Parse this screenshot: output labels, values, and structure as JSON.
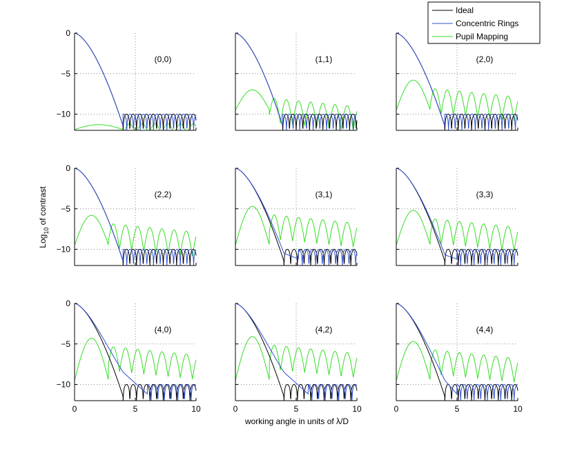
{
  "chart_data": {
    "type": "line",
    "title": "",
    "xlabel": "working angle in units of λ/D",
    "ylabel_main": "Log",
    "ylabel_sub": "10",
    "ylabel_rest": " of contrast",
    "xlim": [
      0,
      10
    ],
    "ylim": [
      -12,
      0
    ],
    "x_ticks": [
      0,
      5,
      10
    ],
    "y_ticks": [
      0,
      -5,
      -10
    ],
    "x_tick_labels": [
      "0",
      "5",
      "10"
    ],
    "y_tick_labels": [
      "0",
      "−5",
      "−10"
    ],
    "grid": "dotted",
    "legend": {
      "position": "top-right",
      "entries": [
        {
          "name": "Ideal",
          "color": "#000000"
        },
        {
          "name": "Concentric Rings",
          "color": "#2f4fd0"
        },
        {
          "name": "Pupil Mapping",
          "color": "#33dd22"
        }
      ]
    },
    "panels": [
      {
        "label": "(0,0)",
        "ideal_zero": 4.0,
        "ring_dev": 0.0,
        "ring_zero": 4.0,
        "pm_type": "low",
        "pm_peak": -11.2
      },
      {
        "label": "(1,1)",
        "ideal_zero": 3.9,
        "ring_dev": 0.0,
        "ring_zero": 3.9,
        "pm_type": "mid",
        "pm_peak": -7.0
      },
      {
        "label": "(2,0)",
        "ideal_zero": 4.0,
        "ring_dev": 0.0,
        "ring_zero": 4.0,
        "pm_type": "mid",
        "pm_peak": -5.8
      },
      {
        "label": "(2,2)",
        "ideal_zero": 4.0,
        "ring_dev": 0.0,
        "ring_zero": 4.0,
        "pm_type": "mid",
        "pm_peak": -5.8
      },
      {
        "label": "(3,1)",
        "ideal_zero": 4.0,
        "ring_dev": 1.0,
        "ring_zero": 5.2,
        "pm_type": "mid",
        "pm_peak": -4.7
      },
      {
        "label": "(3,3)",
        "ideal_zero": 4.0,
        "ring_dev": 0.8,
        "ring_zero": 5.0,
        "pm_type": "mid",
        "pm_peak": -5.2
      },
      {
        "label": "(4,0)",
        "ideal_zero": 4.0,
        "ring_dev": 3.0,
        "ring_zero": 6.0,
        "pm_type": "mid",
        "pm_peak": -4.3
      },
      {
        "label": "(4,2)",
        "ideal_zero": 4.0,
        "ring_dev": 3.0,
        "ring_zero": 6.0,
        "pm_type": "mid",
        "pm_peak": -4.1
      },
      {
        "label": "(4,4)",
        "ideal_zero": 4.0,
        "ring_dev": 2.0,
        "ring_zero": 5.0,
        "pm_type": "mid",
        "pm_peak": -4.7
      }
    ]
  }
}
